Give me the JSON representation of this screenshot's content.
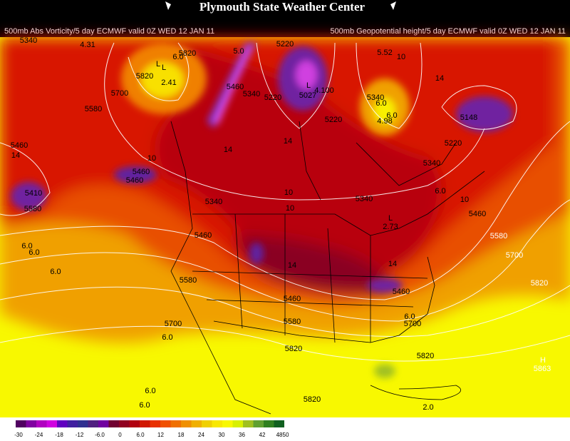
{
  "header": {
    "title": "Plymouth State Weather Center",
    "left_subtitle": "500mb Abs Vorticity/5 day ECMWF valid 0Z WED 12 JAN 11",
    "right_subtitle": "500mb Geopotential height/5 day ECMWF valid 0Z WED 12 JAN 11"
  },
  "map": {
    "labels": [
      "5340",
      "4.31",
      "5820",
      "6.0",
      "L",
      "5820",
      "2.41",
      "5700",
      "5580",
      "5.0",
      "5220",
      "5.52",
      "10",
      "5460",
      "5340",
      "5220",
      "5027",
      "4.100",
      "5340",
      "6.0",
      "6.0",
      "4.98",
      "14",
      "5148",
      "5220",
      "5220",
      "5460",
      "14",
      "5410",
      "5460",
      "5460",
      "10",
      "5340",
      "10",
      "10",
      "5340",
      "5340",
      "6.0",
      "10",
      "5460",
      "L",
      "2.73",
      "5580",
      "6.0",
      "6.0",
      "6.0",
      "5460",
      "5580",
      "5460",
      "5460",
      "5580",
      "5700",
      "5820",
      "5700",
      "5580",
      "6.0",
      "5700",
      "6.0",
      "5820",
      "5820",
      "H",
      "5863",
      "6.0",
      "6.0",
      "5820",
      "2.0",
      "14",
      "14",
      "14",
      "14",
      "L",
      "L"
    ]
  },
  "colorbar": {
    "labels": [
      "-30",
      "-24",
      "-18",
      "-12",
      "-6.0",
      "0",
      "6.0",
      "12",
      "18",
      "24",
      "30",
      "36",
      "42",
      "4850"
    ]
  }
}
